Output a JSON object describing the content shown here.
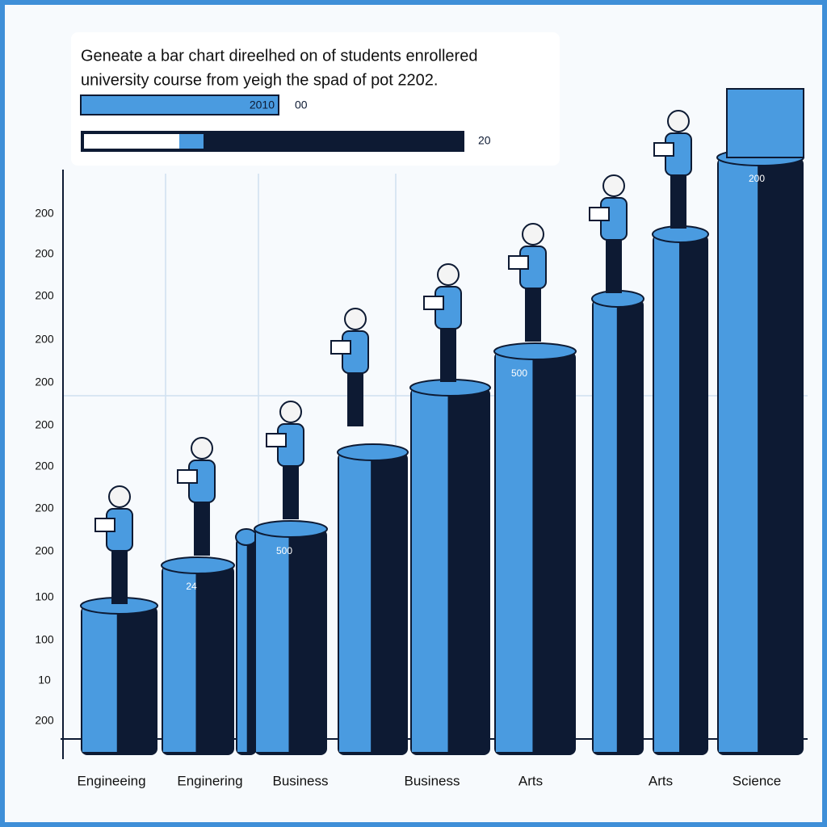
{
  "title": {
    "line1": "Geneate a bar chart direelhed on of students enrollered",
    "line2": "university course from yeigh  the spad of pot 2202."
  },
  "legend": {
    "bar1_label": "2010",
    "bar1_side": "00",
    "bar2_side": "20"
  },
  "y_labels": [
    "200",
    "200",
    "200",
    "200",
    "200",
    "200",
    "200",
    "200",
    "200",
    "100",
    "100",
    "10",
    "200"
  ],
  "categories": [
    "Engineeing",
    "Enginering",
    "Business",
    "Business",
    "Arts",
    "Arts",
    "Science"
  ],
  "bar_labels": [
    "24",
    "500",
    "500",
    "200"
  ]
}
